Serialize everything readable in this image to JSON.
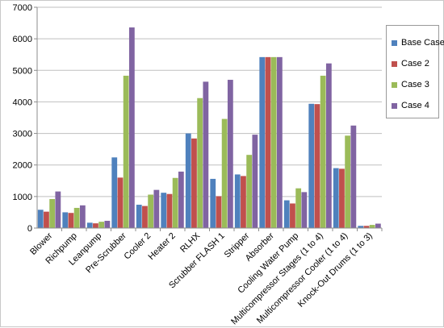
{
  "chart_data": {
    "type": "bar",
    "title": "",
    "xlabel": "",
    "ylabel": "",
    "ylim": [
      0,
      7000
    ],
    "yticks": [
      0,
      1000,
      2000,
      3000,
      4000,
      5000,
      6000,
      7000
    ],
    "grid": "horizontal",
    "legend_position": "right",
    "categories": [
      "Blower",
      "Richpump",
      "Leanpump",
      "Pre-Scrubber",
      "Cooler 2",
      "Heater 2",
      "RLHX",
      "Scrubber FLASH 1",
      "Stripper",
      "Absorber",
      "Cooling Water Pump",
      "Multicompressor Stages (1 to 4)",
      "Multicompressor Cooler (1 to 4)",
      "Knock-Out Drums (1 to 3)"
    ],
    "series": [
      {
        "name": "Base Case",
        "color": "#4f81bd",
        "values": [
          580,
          500,
          170,
          2240,
          740,
          1120,
          3000,
          1560,
          1700,
          5420,
          880,
          3940,
          1900,
          70
        ]
      },
      {
        "name": "Case 2",
        "color": "#c0504d",
        "values": [
          520,
          480,
          150,
          1600,
          700,
          1080,
          2840,
          1010,
          1650,
          5420,
          780,
          3930,
          1880,
          70
        ]
      },
      {
        "name": "Case 3",
        "color": "#9bbb59",
        "values": [
          920,
          640,
          200,
          4830,
          1060,
          1590,
          4120,
          3460,
          2320,
          5420,
          1260,
          4830,
          2930,
          100
        ]
      },
      {
        "name": "Case 4",
        "color": "#8064a2",
        "values": [
          1160,
          720,
          230,
          6360,
          1210,
          1790,
          4640,
          4700,
          2960,
          5420,
          1140,
          5220,
          3250,
          140
        ]
      }
    ]
  }
}
